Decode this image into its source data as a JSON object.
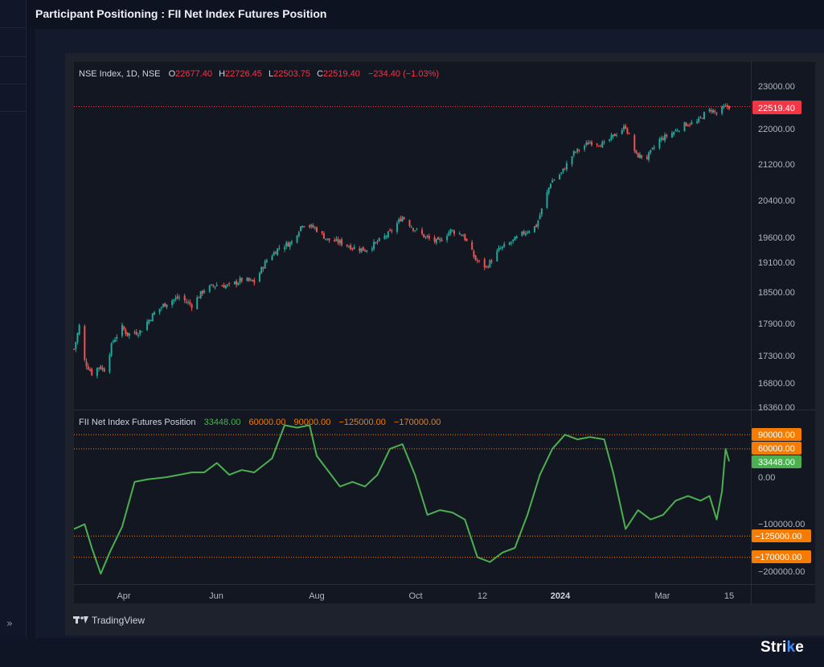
{
  "header": {
    "title": "Participant Positioning : FII Net Index Futures Position"
  },
  "left_panel": {
    "collapse_label": "»"
  },
  "brand": {
    "name_prefix": "Stri",
    "name_highlight": "k",
    "name_suffix": "e"
  },
  "tv": {
    "attribution": "TradingView"
  },
  "colors": {
    "up": "#26a69a",
    "down": "#ef5350",
    "oi_line": "#4caf50",
    "level_orange": "#f57c00",
    "price_badge": "#f23645",
    "bg": "#131722",
    "grid": "#2a2e39"
  },
  "main_pane": {
    "legend": {
      "symbol": "NSE Index, 1D, NSE",
      "open_label": "O",
      "open": "22677.40",
      "high_label": "H",
      "high": "22726.45",
      "low_label": "L",
      "low": "22503.75",
      "close_label": "C",
      "close": "22519.40",
      "change": "−234.40 (−1.03%)"
    },
    "last_price_badge": "22519.40",
    "y_ticks": [
      "23000.00",
      "22000.00",
      "21200.00",
      "20400.00",
      "19600.00",
      "19100.00",
      "18500.00",
      "17900.00",
      "17300.00",
      "16800.00",
      "16360.00"
    ]
  },
  "sub_pane": {
    "legend": {
      "name": "FII Net Index Futures Position",
      "values": [
        "33448.00",
        "60000.00",
        "90000.00",
        "−125000.00",
        "−170000.00"
      ]
    },
    "y_ticks": [
      "0.00",
      "−100000.00",
      "−200000.00"
    ],
    "badges": [
      "90000.00",
      "60000.00",
      "33448.00",
      "−125000.00",
      "−170000.00"
    ]
  },
  "x_axis": {
    "labels": [
      "Apr",
      "Jun",
      "Aug",
      "Oct",
      "12",
      "2024",
      "Mar",
      "15"
    ]
  },
  "chart_data": [
    {
      "type": "candlestick",
      "title": "NSE Index, 1D, NSE",
      "x_range": [
        "2023-03-14",
        "2024-03-15"
      ],
      "ylim": [
        16360,
        23300
      ],
      "close_series": [
        [
          "2023-03-14",
          17420
        ],
        [
          "2023-03-17",
          17850
        ],
        [
          "2023-03-20",
          17200
        ],
        [
          "2023-03-24",
          16980
        ],
        [
          "2023-03-28",
          17100
        ],
        [
          "2023-03-31",
          17050
        ],
        [
          "2023-04-05",
          17580
        ],
        [
          "2023-04-10",
          17820
        ],
        [
          "2023-04-13",
          17700
        ],
        [
          "2023-04-20",
          17750
        ],
        [
          "2023-04-28",
          18100
        ],
        [
          "2023-05-05",
          18300
        ],
        [
          "2023-05-12",
          18400
        ],
        [
          "2023-05-19",
          18250
        ],
        [
          "2023-05-26",
          18550
        ],
        [
          "2023-06-02",
          18650
        ],
        [
          "2023-06-09",
          18620
        ],
        [
          "2023-06-16",
          18750
        ],
        [
          "2023-06-23",
          18700
        ],
        [
          "2023-06-30",
          19150
        ],
        [
          "2023-07-07",
          19400
        ],
        [
          "2023-07-14",
          19500
        ],
        [
          "2023-07-20",
          19900
        ],
        [
          "2023-07-27",
          19800
        ],
        [
          "2023-08-03",
          19550
        ],
        [
          "2023-08-10",
          19500
        ],
        [
          "2023-08-17",
          19400
        ],
        [
          "2023-08-24",
          19350
        ],
        [
          "2023-08-31",
          19500
        ],
        [
          "2023-09-07",
          19700
        ],
        [
          "2023-09-14",
          20050
        ],
        [
          "2023-09-20",
          19800
        ],
        [
          "2023-09-27",
          19600
        ],
        [
          "2023-10-04",
          19500
        ],
        [
          "2023-10-11",
          19750
        ],
        [
          "2023-10-18",
          19650
        ],
        [
          "2023-10-25",
          19150
        ],
        [
          "2023-10-31",
          19000
        ],
        [
          "2023-11-07",
          19350
        ],
        [
          "2023-11-14",
          19500
        ],
        [
          "2023-11-21",
          19700
        ],
        [
          "2023-11-28",
          19850
        ],
        [
          "2023-12-01",
          20200
        ],
        [
          "2023-12-06",
          20800
        ],
        [
          "2023-12-12",
          21000
        ],
        [
          "2023-12-19",
          21450
        ],
        [
          "2023-12-28",
          21700
        ],
        [
          "2024-01-05",
          21650
        ],
        [
          "2024-01-12",
          21900
        ],
        [
          "2024-01-17",
          22050
        ],
        [
          "2024-01-23",
          21400
        ],
        [
          "2024-01-29",
          21350
        ],
        [
          "2024-02-05",
          21750
        ],
        [
          "2024-02-12",
          21900
        ],
        [
          "2024-02-19",
          22100
        ],
        [
          "2024-02-26",
          22150
        ],
        [
          "2024-03-01",
          22350
        ],
        [
          "2024-03-05",
          22450
        ],
        [
          "2024-03-08",
          22350
        ],
        [
          "2024-03-12",
          22500
        ],
        [
          "2024-03-15",
          22519.4
        ]
      ]
    },
    {
      "type": "line",
      "title": "FII Net Index Futures Position",
      "ylim": [
        -215000,
        120000
      ],
      "series": [
        {
          "name": "FII Net Index Futures Position",
          "points": [
            [
              "2023-03-14",
              -110000
            ],
            [
              "2023-03-20",
              -100000
            ],
            [
              "2023-03-24",
              -150000
            ],
            [
              "2023-03-29",
              -205000
            ],
            [
              "2023-04-03",
              -160000
            ],
            [
              "2023-04-10",
              -105000
            ],
            [
              "2023-04-17",
              -10000
            ],
            [
              "2023-04-24",
              -5000
            ],
            [
              "2023-05-05",
              0
            ],
            [
              "2023-05-12",
              5000
            ],
            [
              "2023-05-19",
              10000
            ],
            [
              "2023-05-26",
              10000
            ],
            [
              "2023-06-02",
              30000
            ],
            [
              "2023-06-09",
              5000
            ],
            [
              "2023-06-16",
              15000
            ],
            [
              "2023-06-23",
              10000
            ],
            [
              "2023-07-03",
              40000
            ],
            [
              "2023-07-10",
              110000
            ],
            [
              "2023-07-17",
              105000
            ],
            [
              "2023-07-24",
              110000
            ],
            [
              "2023-07-28",
              45000
            ],
            [
              "2023-08-04",
              10000
            ],
            [
              "2023-08-10",
              -20000
            ],
            [
              "2023-08-17",
              -10000
            ],
            [
              "2023-08-24",
              -20000
            ],
            [
              "2023-08-31",
              5000
            ],
            [
              "2023-09-07",
              60000
            ],
            [
              "2023-09-14",
              70000
            ],
            [
              "2023-09-21",
              5000
            ],
            [
              "2023-09-28",
              -80000
            ],
            [
              "2023-10-05",
              -70000
            ],
            [
              "2023-10-12",
              -75000
            ],
            [
              "2023-10-19",
              -90000
            ],
            [
              "2023-10-26",
              -170000
            ],
            [
              "2023-11-02",
              -180000
            ],
            [
              "2023-11-09",
              -160000
            ],
            [
              "2023-11-16",
              -150000
            ],
            [
              "2023-11-23",
              -80000
            ],
            [
              "2023-11-30",
              5000
            ],
            [
              "2023-12-07",
              60000
            ],
            [
              "2023-12-14",
              90000
            ],
            [
              "2023-12-21",
              80000
            ],
            [
              "2023-12-28",
              85000
            ],
            [
              "2024-01-05",
              80000
            ],
            [
              "2024-01-10",
              10000
            ],
            [
              "2024-01-17",
              -110000
            ],
            [
              "2024-01-24",
              -70000
            ],
            [
              "2024-01-31",
              -90000
            ],
            [
              "2024-02-07",
              -80000
            ],
            [
              "2024-02-14",
              -50000
            ],
            [
              "2024-02-21",
              -40000
            ],
            [
              "2024-02-28",
              -50000
            ],
            [
              "2024-03-04",
              -40000
            ],
            [
              "2024-03-08",
              -90000
            ],
            [
              "2024-03-11",
              -30000
            ],
            [
              "2024-03-13",
              60000
            ],
            [
              "2024-03-15",
              33448
            ]
          ]
        }
      ],
      "levels": [
        90000,
        60000,
        -125000,
        -170000
      ],
      "last_value": 33448
    }
  ]
}
